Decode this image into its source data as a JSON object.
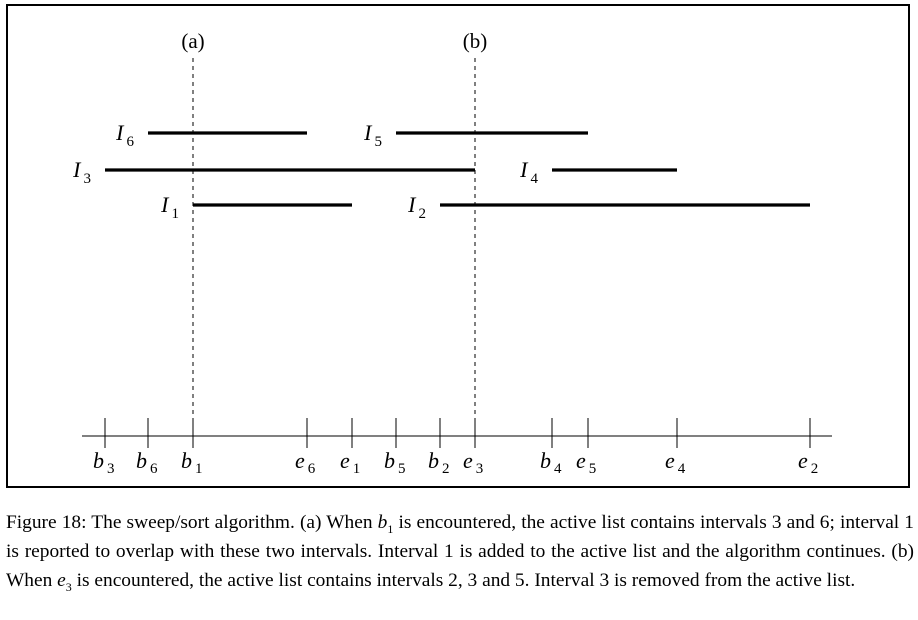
{
  "sweep_lines": [
    {
      "label": "(a)",
      "at": "b1"
    },
    {
      "label": "(b)",
      "at": "e3"
    }
  ],
  "intervals": [
    {
      "name": "I",
      "sub": "6",
      "begin": "b6",
      "end": "e6"
    },
    {
      "name": "I",
      "sub": "5",
      "begin": "b5",
      "end": "e5"
    },
    {
      "name": "I",
      "sub": "3",
      "begin": "b3",
      "end": "e3"
    },
    {
      "name": "I",
      "sub": "4",
      "begin": "b4",
      "end": "e4"
    },
    {
      "name": "I",
      "sub": "1",
      "begin": "b1",
      "end": "e1"
    },
    {
      "name": "I",
      "sub": "2",
      "begin": "b2",
      "end": "e2"
    }
  ],
  "axis_ticks": [
    {
      "id": "b3",
      "letter": "b",
      "sub": "3"
    },
    {
      "id": "b6",
      "letter": "b",
      "sub": "6"
    },
    {
      "id": "b1",
      "letter": "b",
      "sub": "1"
    },
    {
      "id": "e6",
      "letter": "e",
      "sub": "6"
    },
    {
      "id": "e1",
      "letter": "e",
      "sub": "1"
    },
    {
      "id": "b5",
      "letter": "b",
      "sub": "5"
    },
    {
      "id": "b2",
      "letter": "b",
      "sub": "2"
    },
    {
      "id": "e3",
      "letter": "e",
      "sub": "3"
    },
    {
      "id": "b4",
      "letter": "b",
      "sub": "4"
    },
    {
      "id": "e5",
      "letter": "e",
      "sub": "5"
    },
    {
      "id": "e4",
      "letter": "e",
      "sub": "4"
    },
    {
      "id": "e2",
      "letter": "e",
      "sub": "2"
    }
  ],
  "caption": {
    "t1": "Figure 18: The sweep/sort algorithm. (a) When ",
    "v1": "b",
    "s1": "1",
    "t2": " is encountered, the active list contains intervals 3 and 6; interval 1 is reported to overlap with these two intervals. Interval 1 is added to the active list and the algorithm continues. (b) When ",
    "v2": "e",
    "s2": "3",
    "t3": " is encountered, the active list contains intervals 2, 3 and 5. Interval 3 is removed from the active list."
  }
}
